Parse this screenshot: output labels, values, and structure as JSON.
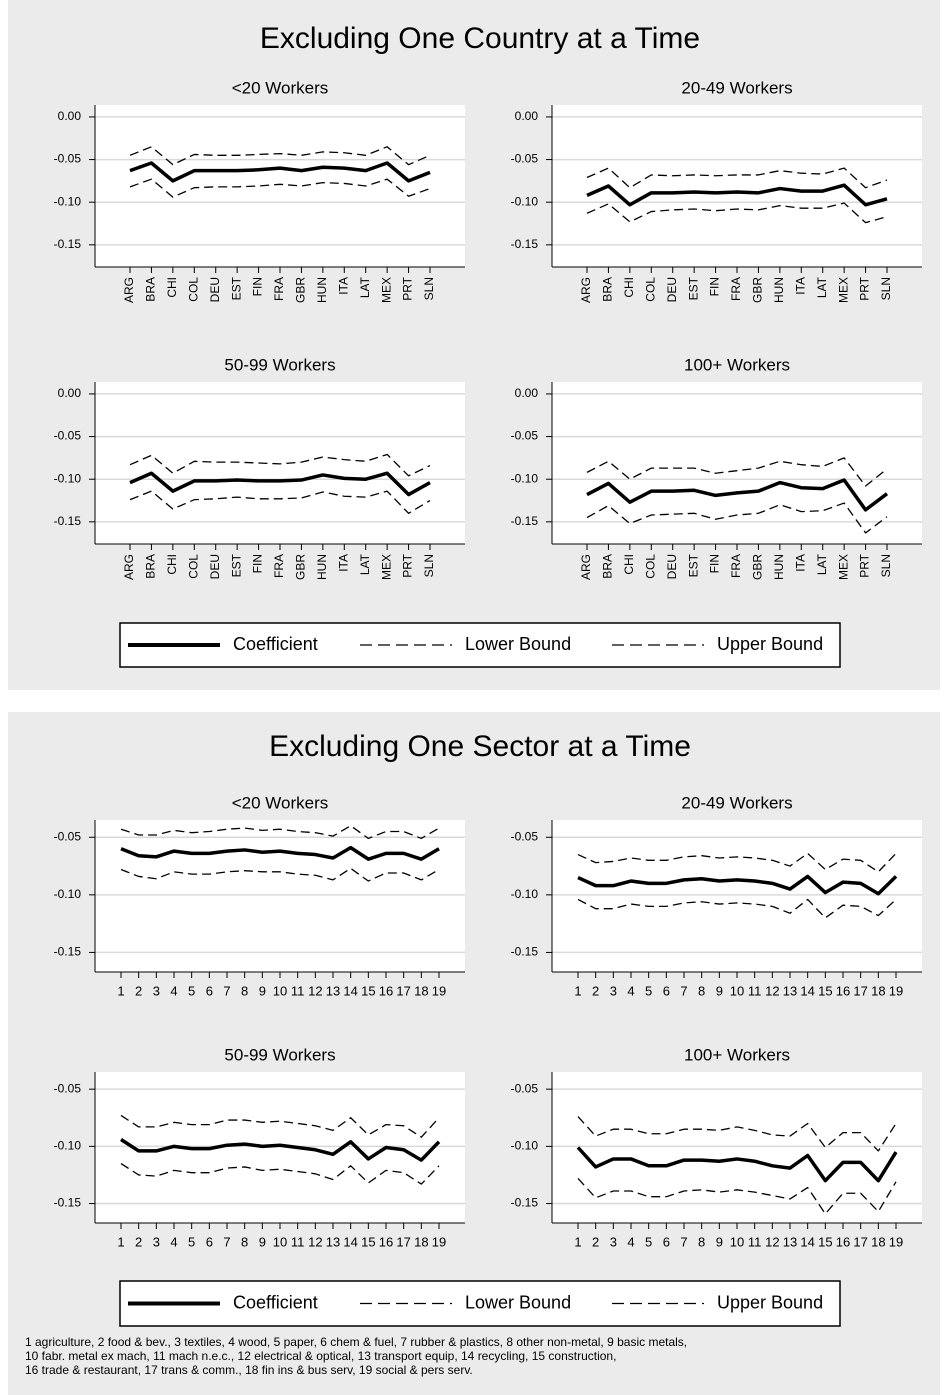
{
  "figures": [
    {
      "title": "Excluding One Country at a Time"
    },
    {
      "title": "Excluding One Sector at a Time",
      "footnote": [
        "1 agriculture, 2 food & bev., 3 textiles, 4 wood, 5 paper, 6 chem & fuel, 7 rubber & plastics, 8 other non-metal,  9 basic metals,",
        "10 fabr. metal ex mach, 11 mach n.e.c., 12 electrical & optical, 13 transport equip, 14 recycling, 15 construction,",
        "16 trade & restaurant, 17 trans & comm., 18 fin ins & bus serv, 19 social & pers serv."
      ]
    }
  ],
  "chart_data": [
    {
      "type": "line",
      "title": "<20 Workers",
      "categories": [
        "ARG",
        "BRA",
        "CHI",
        "COL",
        "DEU",
        "EST",
        "FIN",
        "FRA",
        "GBR",
        "HUN",
        "ITA",
        "LAT",
        "MEX",
        "PRT",
        "SLN"
      ],
      "series": [
        {
          "name": "Coefficient",
          "color": "#000000",
          "linestyle": "solid",
          "values": [
            -0.063,
            -0.054,
            -0.075,
            -0.063,
            -0.063,
            -0.063,
            -0.062,
            -0.06,
            -0.063,
            -0.059,
            -0.06,
            -0.063,
            -0.054,
            -0.075,
            -0.065
          ]
        },
        {
          "name": "Lower Bound",
          "color": "#000000",
          "linestyle": "dashed",
          "values": [
            -0.082,
            -0.073,
            -0.094,
            -0.083,
            -0.082,
            -0.082,
            -0.081,
            -0.079,
            -0.081,
            -0.077,
            -0.078,
            -0.081,
            -0.073,
            -0.093,
            -0.084
          ]
        },
        {
          "name": "Upper Bound",
          "color": "#000000",
          "linestyle": "dashed",
          "values": [
            -0.045,
            -0.035,
            -0.056,
            -0.044,
            -0.045,
            -0.045,
            -0.044,
            -0.043,
            -0.045,
            -0.041,
            -0.042,
            -0.045,
            -0.035,
            -0.056,
            -0.045
          ]
        }
      ],
      "ylim": [
        -0.176,
        0.014
      ],
      "yticks": [
        {
          "value": 0,
          "label": "0.00"
        },
        -0.05,
        {
          "value": -0.1,
          "label": "-0.10"
        },
        -0.15
      ],
      "grid": true
    },
    {
      "type": "line",
      "title": "20-49 Workers",
      "categories": [
        "ARG",
        "BRA",
        "CHI",
        "COL",
        "DEU",
        "EST",
        "FIN",
        "FRA",
        "GBR",
        "HUN",
        "ITA",
        "LAT",
        "MEX",
        "PRT",
        "SLN"
      ],
      "series": [
        {
          "name": "Coefficient",
          "color": "#000000",
          "linestyle": "solid",
          "values": [
            -0.092,
            -0.081,
            -0.103,
            -0.089,
            -0.089,
            -0.088,
            -0.089,
            -0.088,
            -0.089,
            -0.084,
            -0.087,
            -0.087,
            -0.08,
            -0.103,
            -0.096
          ]
        },
        {
          "name": "Lower Bound",
          "color": "#000000",
          "linestyle": "dashed",
          "values": [
            -0.113,
            -0.102,
            -0.123,
            -0.111,
            -0.109,
            -0.108,
            -0.11,
            -0.108,
            -0.109,
            -0.104,
            -0.107,
            -0.107,
            -0.101,
            -0.124,
            -0.117
          ]
        },
        {
          "name": "Upper Bound",
          "color": "#000000",
          "linestyle": "dashed",
          "values": [
            -0.071,
            -0.06,
            -0.083,
            -0.068,
            -0.069,
            -0.068,
            -0.069,
            -0.068,
            -0.068,
            -0.063,
            -0.066,
            -0.067,
            -0.06,
            -0.083,
            -0.074
          ]
        }
      ],
      "ylim": [
        -0.176,
        0.014
      ],
      "yticks": [
        {
          "value": 0,
          "label": "0.00"
        },
        -0.05,
        {
          "value": -0.1,
          "label": "-0.10"
        },
        -0.15
      ],
      "grid": true
    },
    {
      "type": "line",
      "title": "50-99 Workers",
      "categories": [
        "ARG",
        "BRA",
        "CHI",
        "COL",
        "DEU",
        "EST",
        "FIN",
        "FRA",
        "GBR",
        "HUN",
        "ITA",
        "LAT",
        "MEX",
        "PRT",
        "SLN"
      ],
      "series": [
        {
          "name": "Coefficient",
          "color": "#000000",
          "linestyle": "solid",
          "values": [
            -0.104,
            -0.093,
            -0.114,
            -0.102,
            -0.102,
            -0.101,
            -0.102,
            -0.102,
            -0.101,
            -0.095,
            -0.099,
            -0.1,
            -0.093,
            -0.118,
            -0.104
          ]
        },
        {
          "name": "Lower Bound",
          "color": "#000000",
          "linestyle": "dashed",
          "values": [
            -0.124,
            -0.114,
            -0.135,
            -0.124,
            -0.123,
            -0.121,
            -0.123,
            -0.123,
            -0.122,
            -0.115,
            -0.12,
            -0.121,
            -0.114,
            -0.14,
            -0.125
          ]
        },
        {
          "name": "Upper Bound",
          "color": "#000000",
          "linestyle": "dashed",
          "values": [
            -0.083,
            -0.072,
            -0.093,
            -0.079,
            -0.08,
            -0.08,
            -0.081,
            -0.082,
            -0.08,
            -0.074,
            -0.077,
            -0.079,
            -0.071,
            -0.096,
            -0.084
          ]
        }
      ],
      "ylim": [
        -0.176,
        0.014
      ],
      "yticks": [
        {
          "value": 0,
          "label": "0.00"
        },
        -0.05,
        {
          "value": -0.1,
          "label": "-0.10"
        },
        -0.15
      ],
      "grid": true
    },
    {
      "type": "line",
      "title": "100+ Workers",
      "categories": [
        "ARG",
        "BRA",
        "CHI",
        "COL",
        "DEU",
        "EST",
        "FIN",
        "FRA",
        "GBR",
        "HUN",
        "ITA",
        "LAT",
        "MEX",
        "PRT",
        "SLN"
      ],
      "series": [
        {
          "name": "Coefficient",
          "color": "#000000",
          "linestyle": "solid",
          "values": [
            -0.118,
            -0.105,
            -0.127,
            -0.114,
            -0.114,
            -0.113,
            -0.119,
            -0.116,
            -0.114,
            -0.104,
            -0.11,
            -0.111,
            -0.101,
            -0.136,
            -0.117
          ]
        },
        {
          "name": "Lower Bound",
          "color": "#000000",
          "linestyle": "dashed",
          "values": [
            -0.145,
            -0.131,
            -0.152,
            -0.142,
            -0.141,
            -0.14,
            -0.147,
            -0.142,
            -0.14,
            -0.13,
            -0.138,
            -0.137,
            -0.128,
            -0.163,
            -0.144
          ]
        },
        {
          "name": "Upper Bound",
          "color": "#000000",
          "linestyle": "dashed",
          "values": [
            -0.092,
            -0.079,
            -0.1,
            -0.087,
            -0.087,
            -0.087,
            -0.093,
            -0.09,
            -0.087,
            -0.079,
            -0.083,
            -0.085,
            -0.075,
            -0.108,
            -0.088
          ]
        }
      ],
      "ylim": [
        -0.176,
        0.014
      ],
      "yticks": [
        {
          "value": 0,
          "label": "0.00"
        },
        -0.05,
        {
          "value": -0.1,
          "label": "-0.10"
        },
        -0.15
      ],
      "grid": true
    },
    {
      "type": "line",
      "title": "<20 Workers",
      "categories": [
        "1",
        "2",
        "3",
        "4",
        "5",
        "6",
        "7",
        "8",
        "9",
        "10",
        "11",
        "12",
        "13",
        "14",
        "15",
        "16",
        "17",
        "18",
        "19"
      ],
      "series": [
        {
          "name": "Coefficient",
          "color": "#000000",
          "linestyle": "solid",
          "values": [
            -0.06,
            -0.066,
            -0.067,
            -0.062,
            -0.064,
            -0.064,
            -0.062,
            -0.061,
            -0.063,
            -0.062,
            -0.064,
            -0.065,
            -0.068,
            -0.059,
            -0.069,
            -0.064,
            -0.064,
            -0.069,
            -0.06
          ]
        },
        {
          "name": "Lower Bound",
          "color": "#000000",
          "linestyle": "dashed",
          "values": [
            -0.078,
            -0.084,
            -0.086,
            -0.08,
            -0.082,
            -0.082,
            -0.08,
            -0.079,
            -0.08,
            -0.08,
            -0.082,
            -0.083,
            -0.087,
            -0.077,
            -0.088,
            -0.081,
            -0.081,
            -0.087,
            -0.078
          ]
        },
        {
          "name": "Upper Bound",
          "color": "#000000",
          "linestyle": "dashed",
          "values": [
            -0.043,
            -0.048,
            -0.048,
            -0.044,
            -0.046,
            -0.045,
            -0.043,
            -0.042,
            -0.044,
            -0.043,
            -0.045,
            -0.046,
            -0.049,
            -0.04,
            -0.051,
            -0.045,
            -0.045,
            -0.051,
            -0.042
          ]
        }
      ],
      "ylim": [
        -0.167,
        -0.035
      ],
      "yticks": [
        -0.05,
        {
          "value": -0.1,
          "label": "-0.10"
        },
        -0.15
      ],
      "grid": true
    },
    {
      "type": "line",
      "title": "20-49 Workers",
      "categories": [
        "1",
        "2",
        "3",
        "4",
        "5",
        "6",
        "7",
        "8",
        "9",
        "10",
        "11",
        "12",
        "13",
        "14",
        "15",
        "16",
        "17",
        "18",
        "19"
      ],
      "series": [
        {
          "name": "Coefficient",
          "color": "#000000",
          "linestyle": "solid",
          "values": [
            -0.085,
            -0.092,
            -0.092,
            -0.088,
            -0.09,
            -0.09,
            -0.087,
            -0.086,
            -0.088,
            -0.087,
            -0.088,
            -0.09,
            -0.095,
            -0.084,
            -0.098,
            -0.089,
            -0.09,
            -0.099,
            -0.084
          ]
        },
        {
          "name": "Lower Bound",
          "color": "#000000",
          "linestyle": "dashed",
          "values": [
            -0.104,
            -0.112,
            -0.112,
            -0.108,
            -0.11,
            -0.11,
            -0.107,
            -0.106,
            -0.108,
            -0.107,
            -0.108,
            -0.11,
            -0.116,
            -0.104,
            -0.12,
            -0.109,
            -0.11,
            -0.118,
            -0.104
          ]
        },
        {
          "name": "Upper Bound",
          "color": "#000000",
          "linestyle": "dashed",
          "values": [
            -0.065,
            -0.072,
            -0.071,
            -0.068,
            -0.07,
            -0.07,
            -0.067,
            -0.066,
            -0.068,
            -0.067,
            -0.068,
            -0.07,
            -0.075,
            -0.064,
            -0.078,
            -0.069,
            -0.07,
            -0.08,
            -0.064
          ]
        }
      ],
      "ylim": [
        -0.167,
        -0.035
      ],
      "yticks": [
        -0.05,
        {
          "value": -0.1,
          "label": "-0.10"
        },
        -0.15
      ],
      "grid": true
    },
    {
      "type": "line",
      "title": "50-99 Workers",
      "categories": [
        "1",
        "2",
        "3",
        "4",
        "5",
        "6",
        "7",
        "8",
        "9",
        "10",
        "11",
        "12",
        "13",
        "14",
        "15",
        "16",
        "17",
        "18",
        "19"
      ],
      "series": [
        {
          "name": "Coefficient",
          "color": "#000000",
          "linestyle": "solid",
          "values": [
            -0.094,
            -0.104,
            -0.104,
            -0.1,
            -0.102,
            -0.102,
            -0.099,
            -0.098,
            -0.1,
            -0.099,
            -0.101,
            -0.103,
            -0.107,
            -0.096,
            -0.111,
            -0.101,
            -0.103,
            -0.112,
            -0.096
          ]
        },
        {
          "name": "Lower Bound",
          "color": "#000000",
          "linestyle": "dashed",
          "values": [
            -0.115,
            -0.125,
            -0.126,
            -0.121,
            -0.123,
            -0.123,
            -0.119,
            -0.118,
            -0.121,
            -0.12,
            -0.122,
            -0.124,
            -0.129,
            -0.117,
            -0.132,
            -0.121,
            -0.123,
            -0.133,
            -0.117
          ]
        },
        {
          "name": "Upper Bound",
          "color": "#000000",
          "linestyle": "dashed",
          "values": [
            -0.073,
            -0.083,
            -0.083,
            -0.079,
            -0.081,
            -0.081,
            -0.077,
            -0.077,
            -0.079,
            -0.078,
            -0.08,
            -0.082,
            -0.086,
            -0.075,
            -0.09,
            -0.081,
            -0.082,
            -0.092,
            -0.075
          ]
        }
      ],
      "ylim": [
        -0.167,
        -0.035
      ],
      "yticks": [
        -0.05,
        {
          "value": -0.1,
          "label": "-0.10"
        },
        -0.15
      ],
      "grid": true
    },
    {
      "type": "line",
      "title": "100+ Workers",
      "categories": [
        "1",
        "2",
        "3",
        "4",
        "5",
        "6",
        "7",
        "8",
        "9",
        "10",
        "11",
        "12",
        "13",
        "14",
        "15",
        "16",
        "17",
        "18",
        "19"
      ],
      "series": [
        {
          "name": "Coefficient",
          "color": "#000000",
          "linestyle": "solid",
          "values": [
            -0.101,
            -0.118,
            -0.111,
            -0.111,
            -0.117,
            -0.117,
            -0.112,
            -0.112,
            -0.113,
            -0.111,
            -0.113,
            -0.117,
            -0.119,
            -0.108,
            -0.13,
            -0.114,
            -0.114,
            -0.13,
            -0.105
          ]
        },
        {
          "name": "Lower Bound",
          "color": "#000000",
          "linestyle": "dashed",
          "values": [
            -0.128,
            -0.145,
            -0.139,
            -0.139,
            -0.144,
            -0.144,
            -0.139,
            -0.138,
            -0.14,
            -0.138,
            -0.14,
            -0.143,
            -0.146,
            -0.136,
            -0.159,
            -0.141,
            -0.141,
            -0.157,
            -0.131
          ]
        },
        {
          "name": "Upper Bound",
          "color": "#000000",
          "linestyle": "dashed",
          "values": [
            -0.074,
            -0.091,
            -0.085,
            -0.085,
            -0.089,
            -0.089,
            -0.085,
            -0.085,
            -0.086,
            -0.083,
            -0.086,
            -0.09,
            -0.091,
            -0.08,
            -0.101,
            -0.088,
            -0.088,
            -0.104,
            -0.08
          ]
        }
      ],
      "ylim": [
        -0.167,
        -0.035
      ],
      "yticks": [
        -0.05,
        {
          "value": -0.1,
          "label": "-0.10"
        },
        -0.15
      ],
      "grid": true
    }
  ]
}
